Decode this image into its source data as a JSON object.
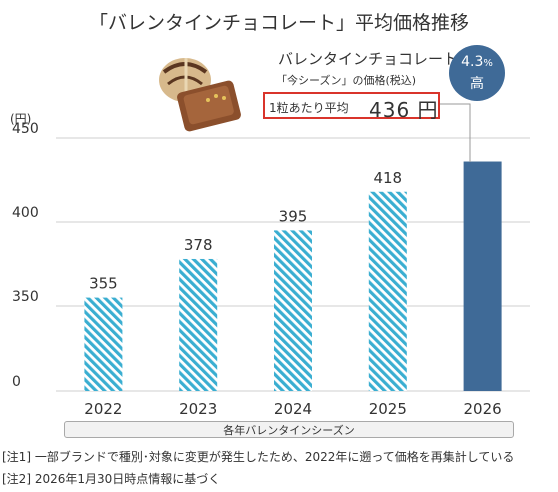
{
  "title": "「バレンタインチョコレート」平均価格推移",
  "unit_label": "(円)",
  "callout": {
    "title": "バレンタインチョコレート",
    "subtitle": "「今シーズン」の価格(税込)",
    "price_label": "1粒あたり平均",
    "price_value": "436 円"
  },
  "badge": {
    "percent": "4.3",
    "percent_sign": "%",
    "word": "高"
  },
  "xlabel": "各年バレンタインシーズン",
  "notes": [
    "[注1]  一部ブランドで種別･対象に変更が発生したため、2022年に遡って価格を再集計している",
    "[注2]  2026年1月30日時点情報に基づく"
  ],
  "colors": {
    "hatch": "#3aaed1",
    "solid": "#3f6a97",
    "accent": "#d9342b"
  },
  "chart_data": {
    "type": "bar",
    "title": "「バレンタインチョコレート」平均価格推移",
    "xlabel": "各年バレンタインシーズン",
    "ylabel": "(円)",
    "categories": [
      "2022",
      "2023",
      "2024",
      "2025",
      "2026"
    ],
    "values": [
      355,
      378,
      395,
      418,
      436
    ],
    "data_labels": [
      "355",
      "378",
      "395",
      "418",
      ""
    ],
    "y_ticks": [
      "0",
      "350",
      "400",
      "450"
    ],
    "y_axis_break": true,
    "ylim": [
      0,
      450
    ],
    "grid": false
  }
}
